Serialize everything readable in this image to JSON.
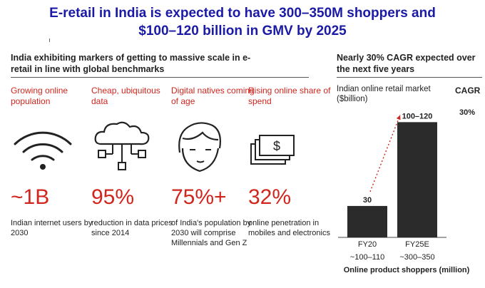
{
  "title": {
    "line1": "E-retail in India is expected to have 300–350M shoppers and",
    "line2": "$100–120 billion in GMV by 2025"
  },
  "left": {
    "heading": "India exhibiting markers of getting to massive scale in e-retail in line with global benchmarks",
    "columns": [
      {
        "head": "Growing online population",
        "icon": "wifi-icon",
        "value": "~1B",
        "desc": "Indian internet users by 2030"
      },
      {
        "head": "Cheap, ubiquitous data",
        "icon": "cloud-network-icon",
        "value": "95%",
        "desc": "reduction in data prices since 2014"
      },
      {
        "head": "Digital natives coming of age",
        "icon": "person-head-icon",
        "value": "75%+",
        "desc": "of India's population by 2030 will comprise Millennials and Gen Z"
      },
      {
        "head": "Rising online share of spend",
        "icon": "cash-icon",
        "value": "32%",
        "desc": "online penetration in mobiles and electronics"
      }
    ],
    "accent_color": "#d0261e"
  },
  "right": {
    "heading": "Nearly 30% CAGR expected over the next five years",
    "cagr_label": "CAGR",
    "cagr_value": "30%",
    "shopper_caption": "Online product shoppers (million)",
    "shoppers": [
      "~100–110",
      "~300–350"
    ]
  },
  "chart_data": {
    "type": "bar",
    "ylabel": "Indian online retail market ($billion)",
    "categories": [
      "FY20",
      "FY25E"
    ],
    "values": [
      30,
      110
    ],
    "data_labels": [
      "30",
      "100–120"
    ],
    "ylim": [
      0,
      115
    ],
    "bar_color": "#2b2b2b",
    "arrow_color": "#d0261e",
    "grid": false
  }
}
